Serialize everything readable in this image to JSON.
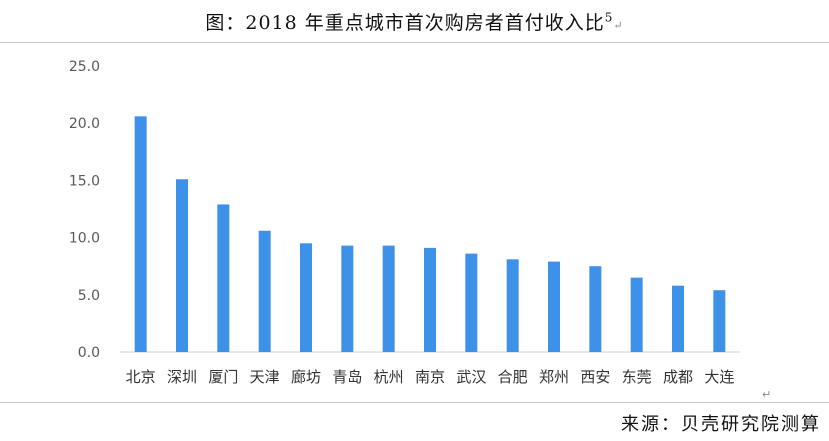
{
  "title_text": "图：2018 年重点城市首次购房者首付收入比",
  "title_footnote": "5",
  "source_text": "来源：贝壳研究院测算",
  "chart_data": {
    "type": "bar",
    "title": "图：2018 年重点城市首次购房者首付收入比",
    "xlabel": "",
    "ylabel": "",
    "categories": [
      "北京",
      "深圳",
      "厦门",
      "天津",
      "廊坊",
      "青岛",
      "杭州",
      "南京",
      "武汉",
      "合肥",
      "郑州",
      "西安",
      "东莞",
      "成都",
      "大连"
    ],
    "values": [
      20.6,
      15.1,
      12.9,
      10.6,
      9.5,
      9.3,
      9.3,
      9.1,
      8.6,
      8.1,
      7.9,
      7.5,
      6.5,
      5.8,
      5.4
    ],
    "ylim": [
      0,
      25
    ],
    "yticks": [
      "0.0",
      "5.0",
      "10.0",
      "15.0",
      "20.0",
      "25.0"
    ],
    "grid": false,
    "legend": "none",
    "bar_color": "#3d91e8"
  }
}
